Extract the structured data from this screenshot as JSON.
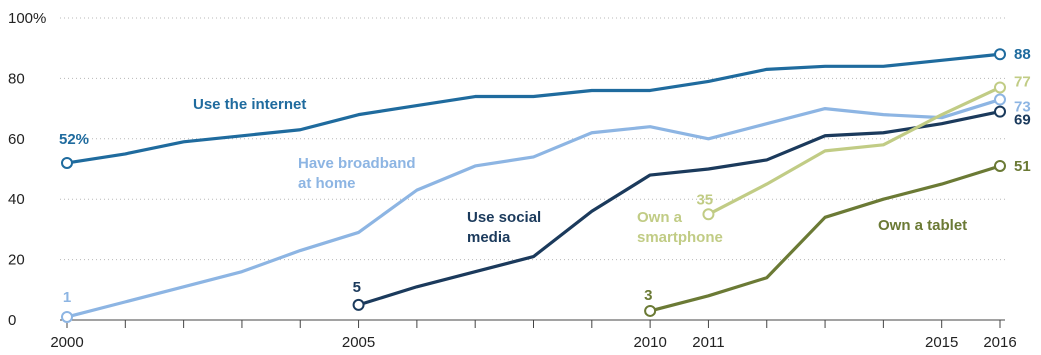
{
  "chart_data": {
    "type": "line",
    "x": [
      2000,
      2001,
      2002,
      2003,
      2004,
      2005,
      2006,
      2007,
      2008,
      2009,
      2010,
      2011,
      2012,
      2013,
      2014,
      2015,
      2016
    ],
    "x_tick_labels": [
      "2000",
      "2005",
      "2010",
      "2011",
      "2015",
      "2016"
    ],
    "y_tick_labels": [
      "0",
      "20",
      "40",
      "60",
      "80",
      "100%"
    ],
    "ylim": [
      0,
      100
    ],
    "grid": "horizontal dotted",
    "series": [
      {
        "name": "Use the internet",
        "label_lines": [
          "Use the internet"
        ],
        "color": "#1f6b9e",
        "x": [
          2000,
          2001,
          2002,
          2003,
          2004,
          2005,
          2006,
          2007,
          2008,
          2009,
          2010,
          2011,
          2012,
          2013,
          2014,
          2015,
          2016
        ],
        "values": [
          52,
          55,
          59,
          61,
          63,
          68,
          71,
          74,
          74,
          76,
          76,
          79,
          83,
          84,
          84,
          86,
          88
        ],
        "start_label": "52%",
        "end_label": "88"
      },
      {
        "name": "Have broadband at home",
        "label_lines": [
          "Have broadband",
          "at home"
        ],
        "color": "#8db5e3",
        "x": [
          2000,
          2001,
          2002,
          2003,
          2004,
          2005,
          2006,
          2007,
          2008,
          2009,
          2010,
          2011,
          2012,
          2013,
          2014,
          2015,
          2016
        ],
        "values": [
          1,
          6,
          11,
          16,
          23,
          29,
          43,
          51,
          54,
          62,
          64,
          60,
          65,
          70,
          68,
          67,
          73
        ],
        "start_label": "1",
        "end_label": "73"
      },
      {
        "name": "Use social media",
        "label_lines": [
          "Use social",
          "media"
        ],
        "color": "#1b3a5c",
        "x": [
          2005,
          2006,
          2007,
          2008,
          2009,
          2010,
          2011,
          2012,
          2013,
          2014,
          2015,
          2016
        ],
        "values": [
          5,
          11,
          16,
          21,
          36,
          48,
          50,
          53,
          61,
          62,
          65,
          69
        ],
        "start_label": "5",
        "end_label": "69"
      },
      {
        "name": "Own a smartphone",
        "label_lines": [
          "Own a",
          "smartphone"
        ],
        "color": "#c1cc85",
        "x": [
          2011,
          2012,
          2013,
          2014,
          2015,
          2016
        ],
        "values": [
          35,
          45,
          56,
          58,
          68,
          77
        ],
        "start_label": "35",
        "end_label": "77"
      },
      {
        "name": "Own a tablet",
        "label_lines": [
          "Own a tablet"
        ],
        "color": "#6b7a35",
        "x": [
          2010,
          2011,
          2012,
          2013,
          2014,
          2015,
          2016
        ],
        "values": [
          3,
          8,
          14,
          34,
          40,
          45,
          51
        ],
        "start_label": "3",
        "end_label": "51"
      }
    ]
  }
}
